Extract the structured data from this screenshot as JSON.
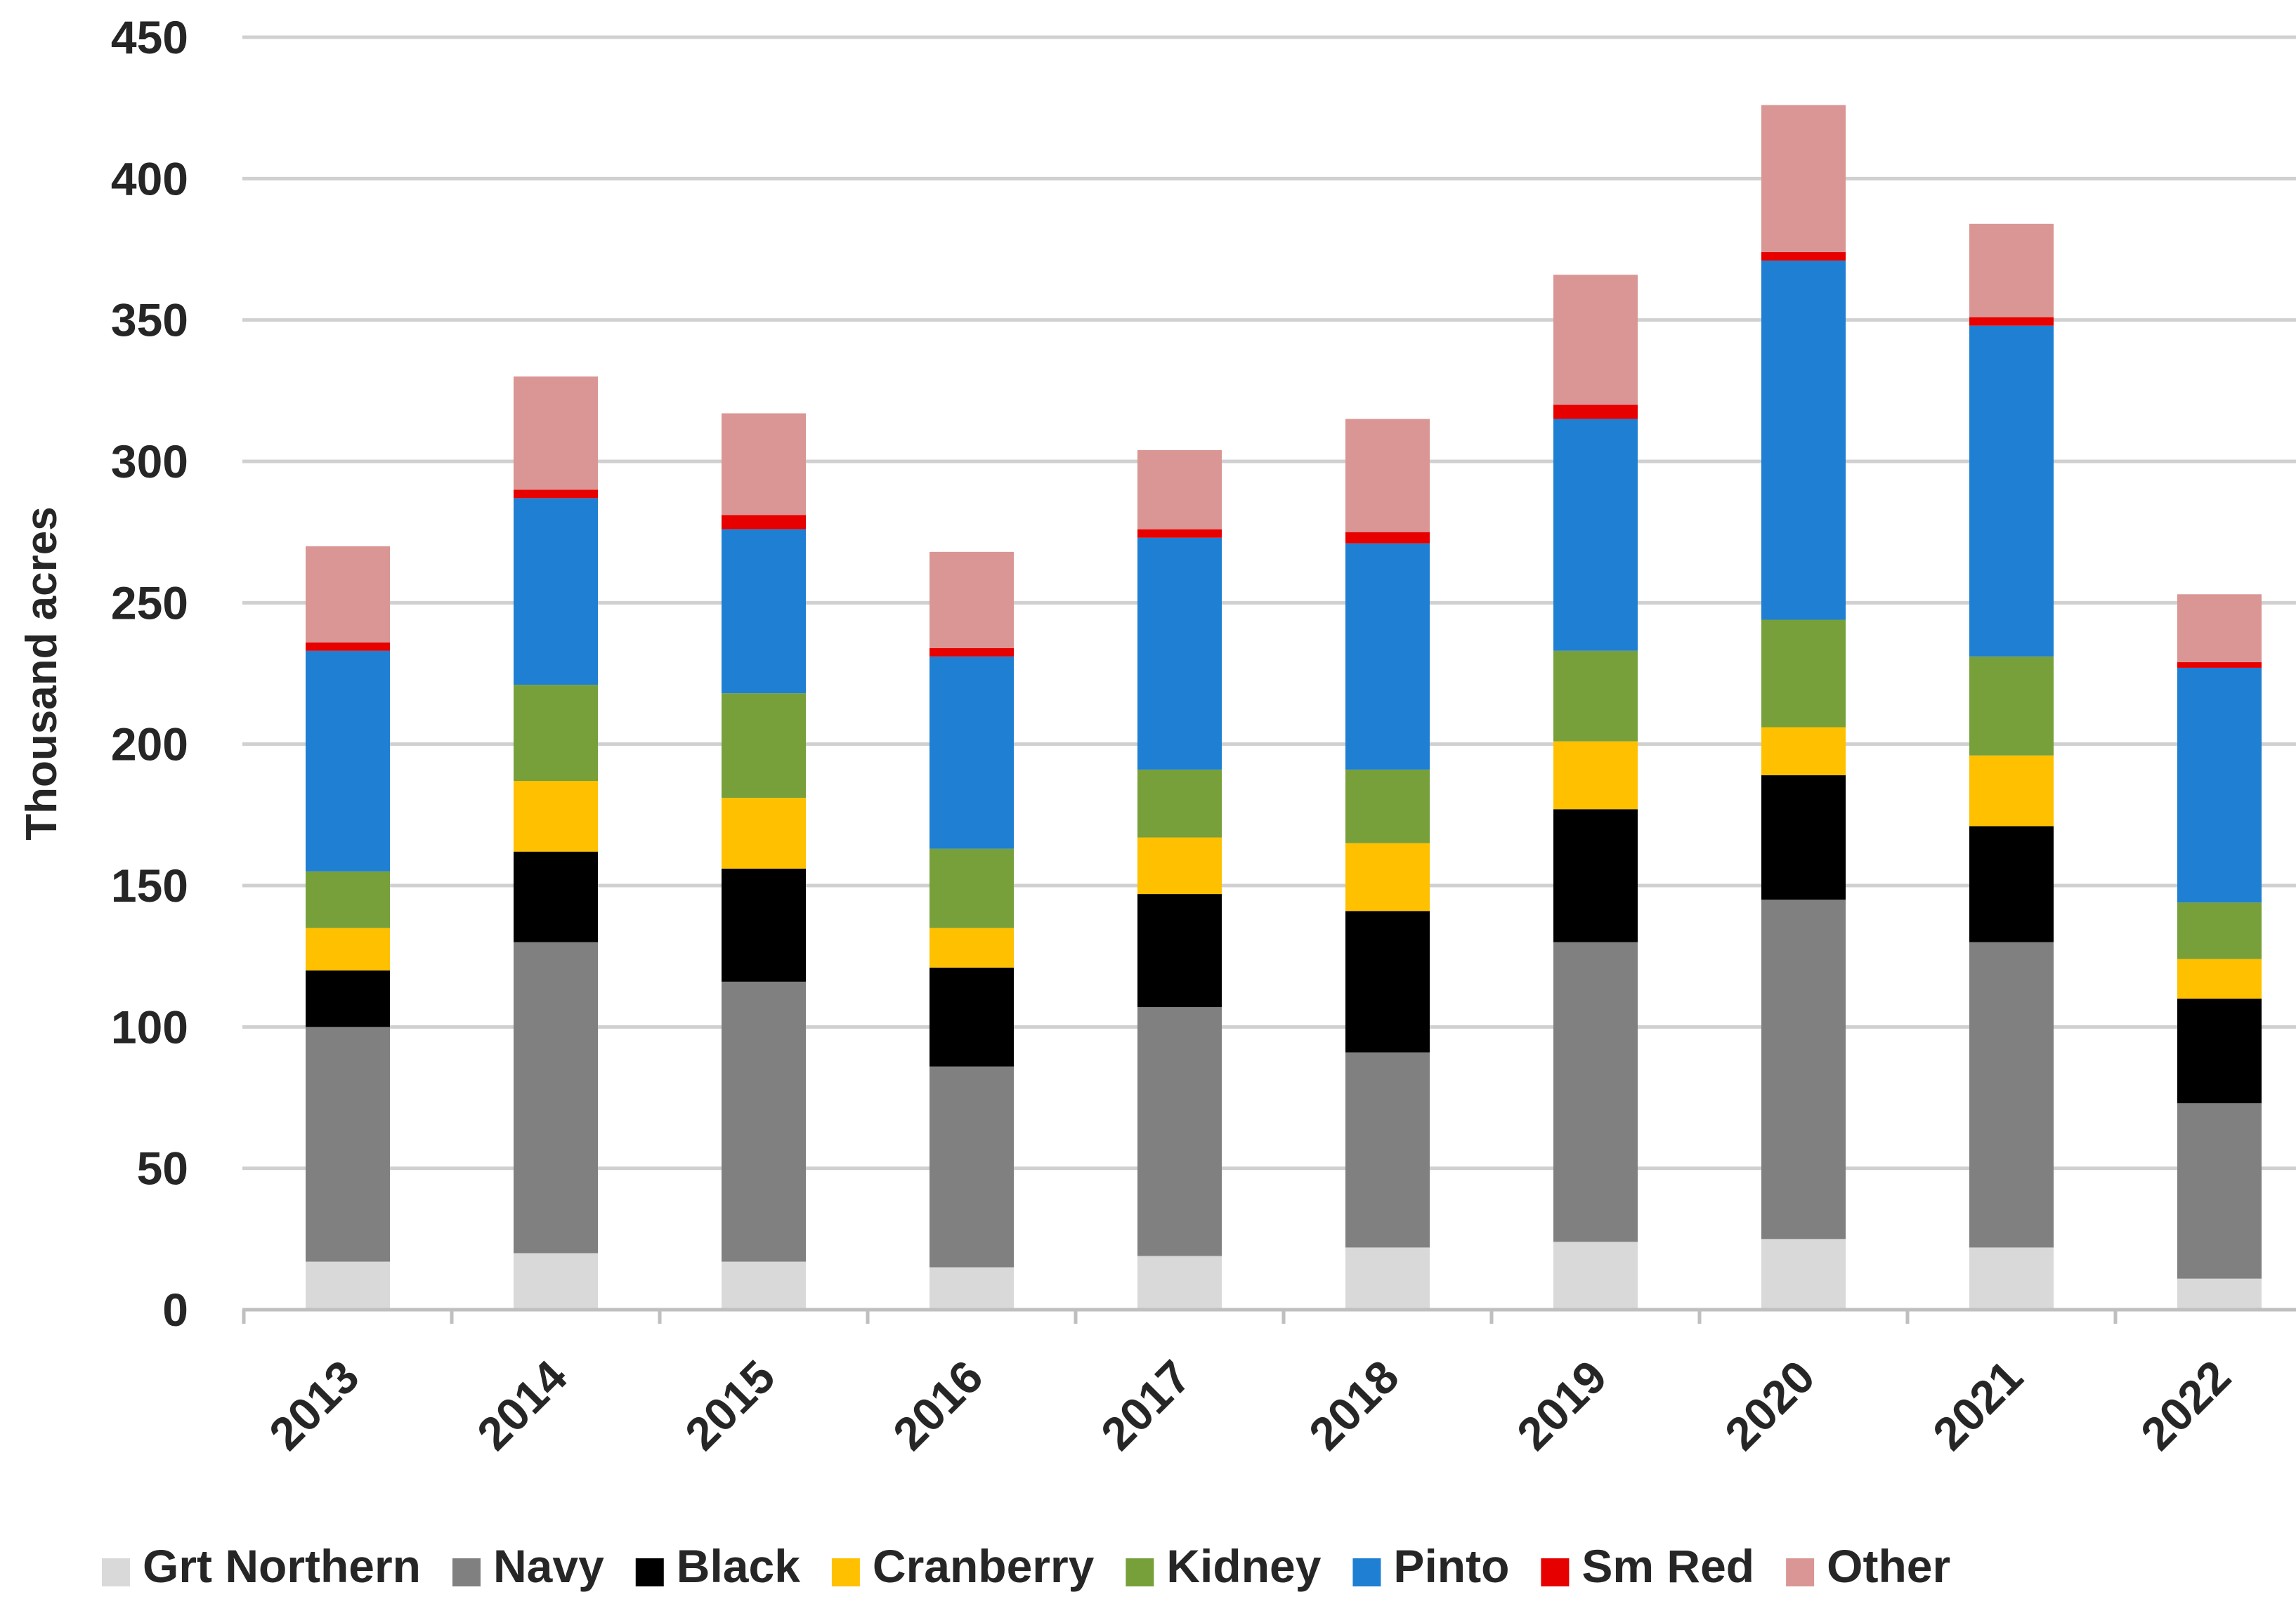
{
  "chart_data": {
    "type": "bar",
    "stacked": true,
    "title": "",
    "xlabel": "",
    "ylabel": "Thousand acres",
    "ylim": [
      0,
      450
    ],
    "yticks": [
      0,
      50,
      100,
      150,
      200,
      250,
      300,
      350,
      400,
      450
    ],
    "grid": true,
    "legend_position": "bottom",
    "categories": [
      "2013",
      "2014",
      "2015",
      "2016",
      "2017",
      "2018",
      "2019",
      "2020",
      "2021",
      "2022"
    ],
    "series": [
      {
        "name": "Grt Northern",
        "color": "#d9d9d9",
        "values": [
          17,
          20,
          17,
          15,
          19,
          22,
          24,
          25,
          22,
          11
        ]
      },
      {
        "name": "Navy",
        "color": "#808080",
        "values": [
          83,
          110,
          99,
          71,
          88,
          69,
          106,
          120,
          108,
          62
        ]
      },
      {
        "name": "Black",
        "color": "#000000",
        "values": [
          20,
          32,
          40,
          35,
          40,
          50,
          47,
          44,
          41,
          37
        ]
      },
      {
        "name": "Cranberry",
        "color": "#ffc000",
        "values": [
          15,
          25,
          25,
          14,
          20,
          24,
          24,
          17,
          25,
          14
        ]
      },
      {
        "name": "Kidney",
        "color": "#77a03a",
        "values": [
          20,
          34,
          37,
          28,
          24,
          26,
          32,
          38,
          35,
          20
        ]
      },
      {
        "name": "Pinto",
        "color": "#1f7fd2",
        "values": [
          78,
          66,
          58,
          68,
          82,
          80,
          82,
          127,
          117,
          83
        ]
      },
      {
        "name": "Sm Red",
        "color": "#e60000",
        "values": [
          3,
          3,
          5,
          3,
          3,
          4,
          5,
          3,
          3,
          2
        ]
      },
      {
        "name": "Other",
        "color": "#d99694",
        "values": [
          34,
          40,
          36,
          34,
          28,
          40,
          46,
          52,
          33,
          24
        ]
      }
    ]
  }
}
